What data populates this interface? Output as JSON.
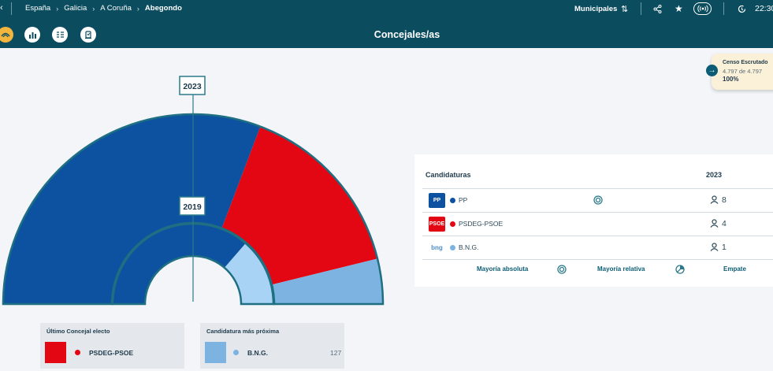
{
  "breadcrumb": {
    "back_glyph": "‹",
    "items": [
      "España",
      "Galicia",
      "A Coruña"
    ],
    "current": "Abegondo"
  },
  "header": {
    "election_type": "Municipales",
    "time": "22:30",
    "subtitle": "Concejales/as"
  },
  "toolbar_icons": [
    "map-icon",
    "bar-chart-icon",
    "list-icon",
    "ballot-icon"
  ],
  "charts": {
    "outer_year": "2023",
    "inner_year": "2019"
  },
  "chart_data": [
    {
      "type": "pie",
      "title": "2023",
      "style": "half-donut",
      "slices": [
        {
          "label": "PP",
          "value": 8,
          "color": "#0d52a0"
        },
        {
          "label": "PSDEG-PSOE",
          "value": 4,
          "color": "#e30613"
        },
        {
          "label": "B.N.G.",
          "value": 1,
          "color": "#7cb3e1"
        }
      ]
    },
    {
      "type": "pie",
      "title": "2019",
      "style": "half-donut",
      "slices": [
        {
          "label": "PP",
          "value": 8,
          "color": "#0d52a0"
        },
        {
          "label": "B.N.G.",
          "value": 3,
          "color": "#a9d3f5"
        }
      ]
    }
  ],
  "census": {
    "title": "Censo Escrutado",
    "detail": "4.797 de 4.797",
    "percent": "100%"
  },
  "table": {
    "header_candidates": "Candidaturas",
    "header_year": "2023",
    "rows": [
      {
        "logo": "PP",
        "name": "PP",
        "seats": "8",
        "color": "#0d52a0",
        "logo_bg": "#0d52a0",
        "marker": "majority"
      },
      {
        "logo": "PSOE",
        "name": "PSDEG-PSOE",
        "seats": "4",
        "color": "#e30613",
        "logo_bg": "#e30613",
        "marker": ""
      },
      {
        "logo": "bng",
        "name": "B.N.G.",
        "seats": "1",
        "color": "#7cb3e1",
        "logo_bg": "#ffffff",
        "marker": ""
      }
    ],
    "legend": {
      "absolute": "Mayoría absoluta",
      "relative": "Mayoría relativa",
      "tie": "Empate"
    }
  },
  "cards": {
    "last_elected_title": "Último Concejal electo",
    "last_elected_party": "PSDEG-PSOE",
    "last_elected_color": "#e30613",
    "nearest_title": "Candidatura más próxima",
    "nearest_party": "B.N.G.",
    "nearest_votes": "127",
    "nearest_color": "#7cb3e1"
  }
}
